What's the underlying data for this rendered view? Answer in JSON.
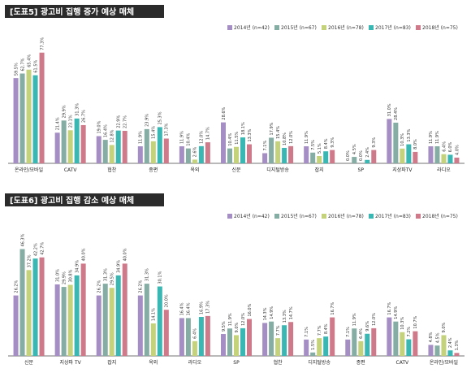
{
  "colors": [
    "#a58ec3",
    "#85ada4",
    "#c4d27c",
    "#3bb7b3",
    "#cf7a8a"
  ],
  "chart_data": [
    {
      "type": "bar",
      "title": "[도표5] 광고비 집행 증가 예상 매체",
      "legend": [
        "2014년 (n=42)",
        "2015년 (n=67)",
        "2016년 (n=78)",
        "2017년 (n=83)",
        "2018년 (n=75)"
      ],
      "legend_position": "top-right",
      "categories": [
        "온라인/모바일",
        "CATV",
        "협찬",
        "종편",
        "옥외",
        "신문",
        "디지털방송",
        "잡지",
        "SP",
        "지상파TV",
        "라디오"
      ],
      "series": [
        {
          "name": "2014년 (n=42)",
          "values": [
            59.5,
            21.4,
            19.0,
            11.9,
            11.9,
            28.6,
            7.1,
            11.9,
            0.0,
            31.0,
            11.9
          ]
        },
        {
          "name": "2015년 (n=67)",
          "values": [
            62.7,
            29.9,
            16.4,
            23.9,
            10.4,
            10.4,
            17.9,
            7.5,
            4.5,
            28.4,
            11.9
          ]
        },
        {
          "name": "2016년 (n=78)",
          "values": [
            65.4,
            23.1,
            12.8,
            15.4,
            2.6,
            11.5,
            15.4,
            5.1,
            0.0,
            10.3,
            6.4
          ]
        },
        {
          "name": "2017년 (n=83)",
          "values": [
            61.5,
            31.3,
            22.9,
            25.3,
            12.0,
            18.1,
            10.8,
            8.4,
            2.4,
            13.3,
            6.0
          ]
        },
        {
          "name": "2018년 (n=75)",
          "values": [
            77.3,
            26.7,
            22.7,
            17.3,
            14.7,
            13.3,
            12.0,
            9.3,
            9.3,
            8.0,
            4.0
          ]
        }
      ],
      "ylim": [
        0,
        80
      ],
      "grid": false
    },
    {
      "type": "bar",
      "title": "[도표6] 광고비 집행 감소 예상 매체",
      "legend": [
        "2014년 (n=42)",
        "2015년 (n=67)",
        "2016년 (n=78)",
        "2017년 (n=83)",
        "2018년 (n=75)"
      ],
      "legend_position": "top-right",
      "categories": [
        "신문",
        "지상파 TV",
        "잡지",
        "옥외",
        "라디오",
        "SP",
        "협찬",
        "디지털방송",
        "종편",
        "CATV",
        "온라인/모바일"
      ],
      "series": [
        {
          "name": "2014년 (n=42)",
          "values": [
            26.2,
            31.0,
            26.2,
            26.2,
            16.4,
            9.5,
            14.3,
            7.1,
            7.1,
            16.7,
            4.8
          ]
        },
        {
          "name": "2015년 (n=67)",
          "values": [
            46.3,
            29.9,
            31.3,
            31.3,
            16.4,
            11.9,
            14.9,
            1.5,
            11.9,
            14.9,
            4.5
          ]
        },
        {
          "name": "2016년 (n=78)",
          "values": [
            37.2,
            30.8,
            29.5,
            14.1,
            6.4,
            9.0,
            7.7,
            7.7,
            6.4,
            10.3,
            9.0
          ]
        },
        {
          "name": "2017년 (n=83)",
          "values": [
            42.2,
            34.9,
            34.9,
            30.1,
            16.9,
            12.0,
            13.3,
            8.4,
            9.6,
            7.2,
            2.4
          ]
        },
        {
          "name": "2018년 (n=75)",
          "values": [
            42.7,
            40.0,
            40.0,
            20.0,
            17.3,
            16.0,
            14.7,
            16.7,
            12.0,
            10.7,
            1.3
          ]
        }
      ],
      "ylim": [
        0,
        50
      ],
      "grid": false
    }
  ]
}
